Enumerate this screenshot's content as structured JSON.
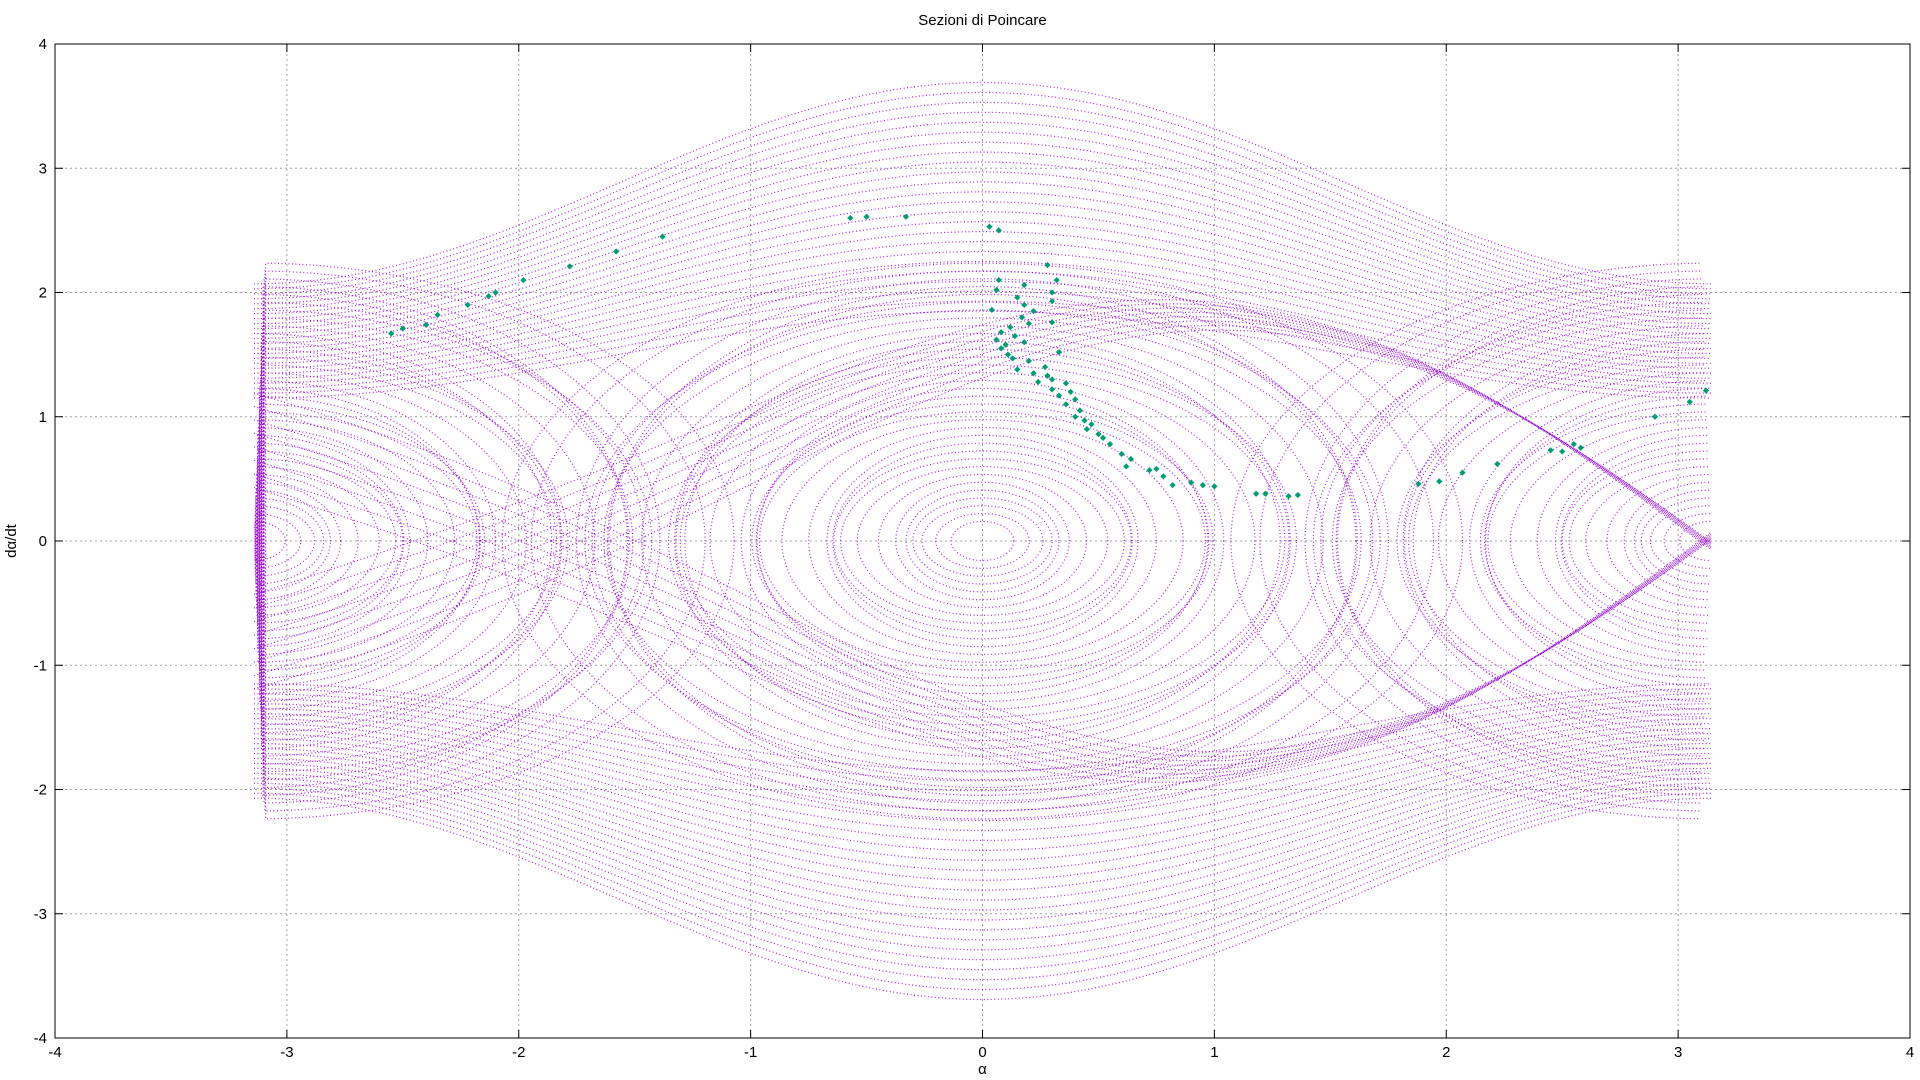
{
  "chart_data": {
    "type": "scatter",
    "title": "Sezioni di Poincare",
    "xlabel": "α",
    "ylabel": "dα/dt",
    "xlim": [
      -4,
      4
    ],
    "ylim": [
      -4,
      4
    ],
    "xticks": [
      "-4",
      "-3",
      "-2",
      "-1",
      "0",
      "1",
      "2",
      "3",
      "4"
    ],
    "yticks": [
      "-4",
      "-3",
      "-2",
      "-1",
      "0",
      "1",
      "2",
      "3",
      "4"
    ],
    "grid": true,
    "legend": "none",
    "colors": {
      "trajectories": "#9400d3",
      "section_points": "#009e73"
    },
    "series": [
      {
        "style": "dots",
        "color": "#9400d3",
        "description_alpha_range": [
          -3.14159,
          3.14159
        ],
        "dalpha_dt_range": [
          -3.05,
          3.05
        ]
      },
      {
        "style": "markers",
        "color": "#009e73",
        "points": [
          [
            -2.55,
            1.67
          ],
          [
            -2.5,
            1.71
          ],
          [
            -2.4,
            1.74
          ],
          [
            -2.35,
            1.82
          ],
          [
            -2.22,
            1.9
          ],
          [
            -2.13,
            1.97
          ],
          [
            -2.1,
            2.0
          ],
          [
            -1.98,
            2.1
          ],
          [
            -1.78,
            2.21
          ],
          [
            -1.58,
            2.33
          ],
          [
            -1.38,
            2.45
          ],
          [
            -0.57,
            2.6
          ],
          [
            -0.5,
            2.61
          ],
          [
            -0.33,
            2.61
          ],
          [
            0.03,
            2.53
          ],
          [
            0.07,
            2.5
          ],
          [
            0.28,
            2.22
          ],
          [
            0.32,
            2.1
          ],
          [
            0.07,
            2.1
          ],
          [
            0.18,
            2.06
          ],
          [
            0.3,
            2.0
          ],
          [
            0.06,
            2.02
          ],
          [
            0.15,
            1.96
          ],
          [
            0.3,
            1.93
          ],
          [
            0.18,
            1.9
          ],
          [
            0.22,
            1.85
          ],
          [
            0.04,
            1.86
          ],
          [
            0.17,
            1.8
          ],
          [
            0.2,
            1.75
          ],
          [
            0.3,
            1.76
          ],
          [
            0.12,
            1.72
          ],
          [
            0.08,
            1.68
          ],
          [
            0.14,
            1.65
          ],
          [
            0.06,
            1.62
          ],
          [
            0.1,
            1.58
          ],
          [
            0.18,
            1.6
          ],
          [
            0.08,
            1.55
          ],
          [
            0.11,
            1.5
          ],
          [
            0.13,
            1.47
          ],
          [
            0.2,
            1.45
          ],
          [
            0.33,
            1.52
          ],
          [
            0.27,
            1.4
          ],
          [
            0.15,
            1.38
          ],
          [
            0.22,
            1.35
          ],
          [
            0.28,
            1.33
          ],
          [
            0.3,
            1.3
          ],
          [
            0.24,
            1.28
          ],
          [
            0.36,
            1.27
          ],
          [
            0.3,
            1.22
          ],
          [
            0.38,
            1.2
          ],
          [
            0.33,
            1.17
          ],
          [
            0.4,
            1.14
          ],
          [
            0.36,
            1.1
          ],
          [
            0.42,
            1.05
          ],
          [
            0.4,
            1.0
          ],
          [
            0.44,
            0.97
          ],
          [
            0.47,
            0.94
          ],
          [
            0.45,
            0.9
          ],
          [
            0.5,
            0.86
          ],
          [
            0.52,
            0.83
          ],
          [
            0.55,
            0.78
          ],
          [
            0.6,
            0.7
          ],
          [
            0.64,
            0.66
          ],
          [
            0.62,
            0.6
          ],
          [
            0.72,
            0.57
          ],
          [
            0.75,
            0.58
          ],
          [
            0.78,
            0.52
          ],
          [
            0.82,
            0.45
          ],
          [
            0.9,
            0.47
          ],
          [
            0.95,
            0.45
          ],
          [
            1.0,
            0.44
          ],
          [
            1.18,
            0.38
          ],
          [
            1.22,
            0.38
          ],
          [
            1.32,
            0.36
          ],
          [
            1.36,
            0.37
          ],
          [
            1.88,
            0.46
          ],
          [
            1.97,
            0.48
          ],
          [
            2.07,
            0.55
          ],
          [
            2.22,
            0.62
          ],
          [
            2.45,
            0.73
          ],
          [
            2.5,
            0.72
          ],
          [
            2.58,
            0.75
          ],
          [
            2.55,
            0.78
          ],
          [
            2.9,
            1.0
          ],
          [
            3.05,
            1.12
          ],
          [
            3.12,
            1.21
          ]
        ]
      }
    ]
  }
}
